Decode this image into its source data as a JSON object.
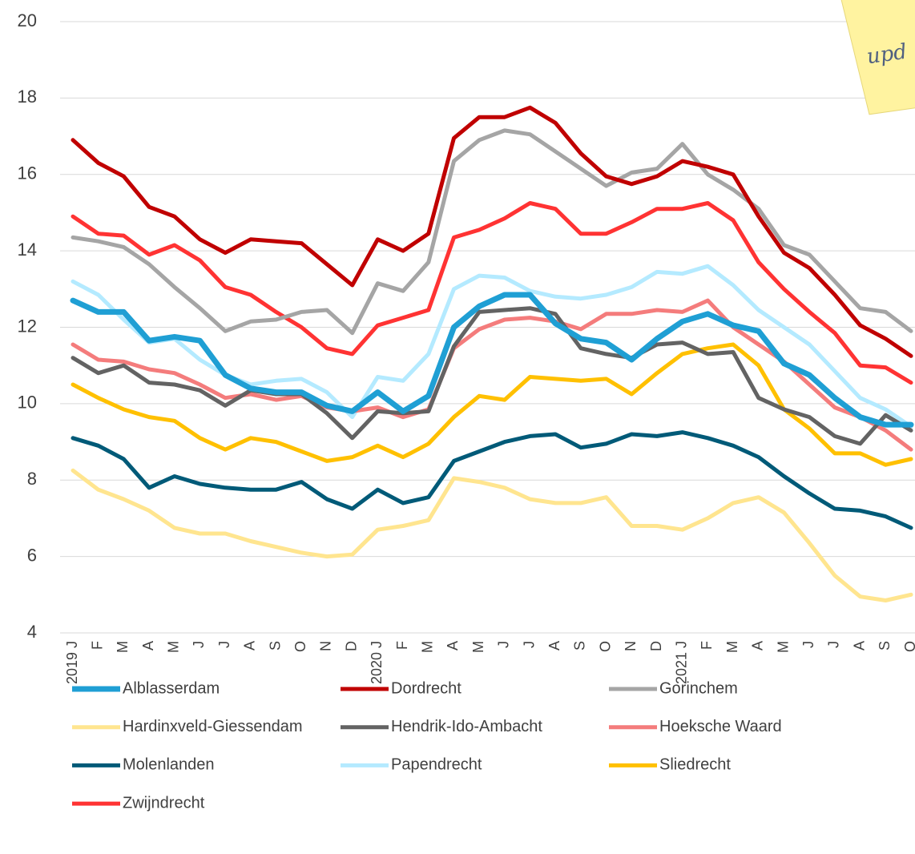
{
  "chart_data": {
    "type": "line",
    "note": "upd",
    "categories": [
      "2019 J",
      "F",
      "M",
      "A",
      "M",
      "J",
      "J",
      "A",
      "S",
      "O",
      "N",
      "D",
      "2020 J",
      "F",
      "M",
      "A",
      "M",
      "J",
      "J",
      "A",
      "S",
      "O",
      "N",
      "D",
      "2021 J",
      "F",
      "M",
      "A",
      "M",
      "J",
      "J",
      "A",
      "S",
      "O"
    ],
    "ylim": [
      4,
      20
    ],
    "yticks": [
      4,
      6,
      8,
      10,
      12,
      14,
      16,
      18,
      20
    ],
    "grid": true,
    "series": [
      {
        "name": "Alblasserdam",
        "color": "#1f9fd4",
        "values": [
          12.7,
          12.4,
          12.4,
          11.65,
          11.75,
          11.65,
          10.75,
          10.4,
          10.3,
          10.3,
          9.95,
          9.8,
          10.3,
          9.8,
          10.2,
          12.0,
          12.55,
          12.85,
          12.85,
          12.1,
          11.7,
          11.6,
          11.15,
          11.7,
          12.15,
          12.35,
          12.05,
          11.9,
          11.05,
          10.75,
          10.15,
          9.65,
          9.45,
          9.45
        ]
      },
      {
        "name": "Dordrecht",
        "color": "#c00000",
        "values": [
          16.9,
          16.3,
          15.95,
          15.15,
          14.9,
          14.3,
          13.95,
          14.3,
          14.25,
          14.2,
          13.65,
          13.1,
          14.3,
          14.0,
          14.45,
          16.95,
          17.5,
          17.5,
          17.75,
          17.35,
          16.55,
          15.95,
          15.75,
          15.95,
          16.35,
          16.2,
          16.0,
          14.9,
          13.95,
          13.55,
          12.85,
          12.05,
          11.7,
          11.25
        ]
      },
      {
        "name": "Gorinchem",
        "color": "#a5a5a5",
        "values": [
          14.35,
          14.25,
          14.1,
          13.65,
          13.05,
          12.5,
          11.9,
          12.15,
          12.2,
          12.4,
          12.45,
          11.85,
          13.15,
          12.95,
          13.7,
          16.35,
          16.9,
          17.15,
          17.05,
          16.6,
          16.15,
          15.7,
          16.05,
          16.15,
          16.8,
          16.0,
          15.6,
          15.1,
          14.15,
          13.9,
          13.2,
          12.5,
          12.4,
          11.9
        ]
      },
      {
        "name": "Hardinxveld-Giessendam",
        "color": "#ffe58f",
        "values": [
          8.25,
          7.75,
          7.5,
          7.2,
          6.75,
          6.6,
          6.6,
          6.4,
          6.25,
          6.1,
          6.0,
          6.05,
          6.7,
          6.8,
          6.95,
          8.05,
          7.95,
          7.8,
          7.5,
          7.4,
          7.4,
          7.55,
          6.8,
          6.8,
          6.7,
          7.0,
          7.4,
          7.55,
          7.15,
          6.35,
          5.5,
          4.95,
          4.85,
          5.0
        ]
      },
      {
        "name": "Hendrik-Ido-Ambacht",
        "color": "#636363",
        "values": [
          11.2,
          10.8,
          11.0,
          10.55,
          10.5,
          10.35,
          9.95,
          10.35,
          10.25,
          10.25,
          9.75,
          9.1,
          9.8,
          9.75,
          9.8,
          11.5,
          12.4,
          12.45,
          12.5,
          12.35,
          11.45,
          11.3,
          11.2,
          11.55,
          11.6,
          11.3,
          11.35,
          10.15,
          9.85,
          9.65,
          9.15,
          8.95,
          9.7,
          9.3
        ]
      },
      {
        "name": "Hoeksche Waard",
        "color": "#f47c7c",
        "values": [
          11.55,
          11.15,
          11.1,
          10.9,
          10.8,
          10.5,
          10.15,
          10.25,
          10.1,
          10.2,
          9.9,
          9.8,
          9.9,
          9.65,
          9.85,
          11.45,
          11.95,
          12.2,
          12.25,
          12.15,
          11.95,
          12.35,
          12.35,
          12.45,
          12.4,
          12.7,
          12.0,
          11.55,
          11.1,
          10.5,
          9.9,
          9.65,
          9.3,
          8.8
        ]
      },
      {
        "name": "Molenlanden",
        "color": "#005a78",
        "values": [
          9.1,
          8.9,
          8.55,
          7.8,
          8.1,
          7.9,
          7.8,
          7.75,
          7.75,
          7.95,
          7.5,
          7.25,
          7.75,
          7.4,
          7.55,
          8.5,
          8.75,
          9.0,
          9.15,
          9.2,
          8.85,
          8.95,
          9.2,
          9.15,
          9.25,
          9.1,
          8.9,
          8.6,
          8.1,
          7.65,
          7.25,
          7.2,
          7.05,
          6.75
        ]
      },
      {
        "name": "Papendrecht",
        "color": "#b4eaff",
        "values": [
          13.2,
          12.85,
          12.2,
          11.6,
          11.7,
          11.15,
          10.75,
          10.5,
          10.6,
          10.65,
          10.3,
          9.65,
          10.7,
          10.6,
          11.3,
          13.0,
          13.35,
          13.3,
          12.95,
          12.8,
          12.75,
          12.85,
          13.05,
          13.45,
          13.4,
          13.6,
          13.1,
          12.45,
          12.0,
          11.55,
          10.85,
          10.15,
          9.85,
          9.4
        ]
      },
      {
        "name": "Sliedrecht",
        "color": "#ffc000",
        "values": [
          10.5,
          10.15,
          9.85,
          9.65,
          9.55,
          9.1,
          8.8,
          9.1,
          9.0,
          8.75,
          8.5,
          8.6,
          8.9,
          8.6,
          8.95,
          9.65,
          10.2,
          10.1,
          10.7,
          10.65,
          10.6,
          10.65,
          10.25,
          10.8,
          11.3,
          11.45,
          11.55,
          11.0,
          9.85,
          9.35,
          8.7,
          8.7,
          8.4,
          8.55
        ]
      },
      {
        "name": "Zwijndrecht",
        "color": "#ff3333",
        "values": [
          14.9,
          14.45,
          14.4,
          13.9,
          14.15,
          13.75,
          13.05,
          12.85,
          12.4,
          12.0,
          11.45,
          11.3,
          12.05,
          12.25,
          12.45,
          14.35,
          14.55,
          14.85,
          15.25,
          15.1,
          14.45,
          14.45,
          14.75,
          15.1,
          15.1,
          15.25,
          14.8,
          13.7,
          13.0,
          12.4,
          11.85,
          11.0,
          10.95,
          10.55
        ]
      }
    ]
  }
}
